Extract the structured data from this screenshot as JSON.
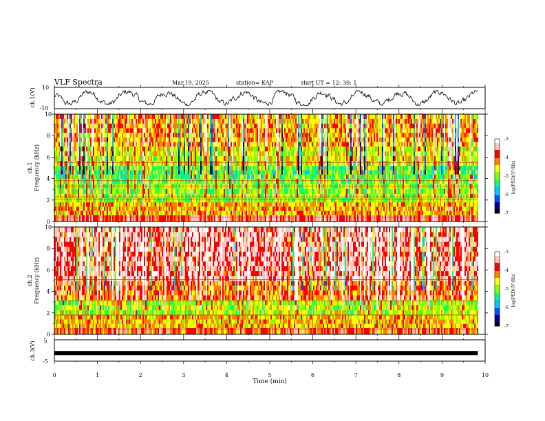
{
  "header": {
    "title": "VLF Spectra",
    "date": "Mar.19, 2025",
    "station": "station= KAP",
    "start_ut": "start  UT  =   12: 30: 1"
  },
  "x_axis": {
    "label": "Time  (min)",
    "ticks": [
      "0",
      "1",
      "2",
      "3",
      "4",
      "5",
      "6",
      "7",
      "8",
      "9",
      "10"
    ],
    "range": [
      0,
      10
    ],
    "data_end": 9.83
  },
  "panels": {
    "ch1_waveform": {
      "ylabel": "ch.1(V)",
      "ticks": [
        "10",
        "-10"
      ],
      "range": [
        -10,
        10
      ]
    },
    "ch1_spectrogram": {
      "ylabel_channel": "ch.1",
      "ylabel": "Frequency  (kHz)",
      "ticks": [
        "0",
        "2",
        "4",
        "6",
        "8",
        "10"
      ],
      "range": [
        0,
        10
      ],
      "colorbar": {
        "label": "log(PSD)(V²/Hz)",
        "ticks": [
          "-3",
          "-4",
          "-5",
          "-6",
          "-7"
        ],
        "range": [
          -7,
          -3
        ]
      }
    },
    "ch2_spectrogram": {
      "ylabel_channel": "ch.2",
      "ylabel": "Frequency  (kHz)",
      "ticks": [
        "0",
        "2",
        "4",
        "6",
        "8",
        "10"
      ],
      "range": [
        0,
        10
      ],
      "colorbar": {
        "label": "log(PSD)(V²/Hz)",
        "ticks": [
          "-3",
          "-4",
          "-5",
          "-6",
          "-7"
        ],
        "range": [
          -7,
          -3
        ]
      }
    },
    "ch3_waveform": {
      "ylabel": "ch.3(V)",
      "ticks": [
        "5",
        "-5"
      ],
      "range": [
        -5,
        5
      ],
      "level": -1.2
    }
  },
  "colors": {
    "colormap": [
      "#000000",
      "#0000a0",
      "#0050ff",
      "#00c8ff",
      "#00ff80",
      "#80ff00",
      "#ffff00",
      "#ff8000",
      "#ff0000",
      "#ffc0c0",
      "#ffffff"
    ]
  },
  "chart_data": [
    {
      "type": "line",
      "title": "VLF Spectra",
      "ylabel": "ch.1(V)",
      "xlabel": "Time  (min)",
      "xlim": [
        0,
        10
      ],
      "ylim": [
        -10,
        10
      ],
      "series": [
        {
          "x": [
            0,
            9.83
          ],
          "note_range": [
            -6,
            6
          ]
        }
      ]
    },
    {
      "type": "heatmap",
      "ylabel": "Frequency  (kHz)",
      "xlabel": "Time  (min)",
      "xlim": [
        0,
        10
      ],
      "ylim": [
        0,
        10
      ],
      "colorbar_label": "log(PSD)(V²/Hz)",
      "zlim": [
        -7,
        -3
      ],
      "bands_khz": [
        {
          "from": 0.0,
          "to": 0.6,
          "log_psd": -3.8
        },
        {
          "from": 0.6,
          "to": 1.8,
          "log_psd": -4.4
        },
        {
          "from": 1.8,
          "to": 2.6,
          "log_psd": -4.9
        },
        {
          "from": 2.6,
          "to": 4.0,
          "log_psd": -5.0
        },
        {
          "from": 4.0,
          "to": 5.2,
          "log_psd": -5.2
        },
        {
          "from": 5.2,
          "to": 7.0,
          "log_psd": -4.7
        },
        {
          "from": 7.0,
          "to": 10.0,
          "log_psd": -4.3
        }
      ],
      "lines_khz": [
        0.4,
        2.1,
        2.3,
        3.3,
        3.8,
        5.5
      ]
    },
    {
      "type": "heatmap",
      "ylabel": "Frequency  (kHz)",
      "xlabel": "Time  (min)",
      "xlim": [
        0,
        10
      ],
      "ylim": [
        0,
        10
      ],
      "colorbar_label": "log(PSD)(V²/Hz)",
      "zlim": [
        -7,
        -3
      ],
      "bands_khz": [
        {
          "from": 0.0,
          "to": 0.6,
          "log_psd": -4.2
        },
        {
          "from": 0.6,
          "to": 1.8,
          "log_psd": -4.6
        },
        {
          "from": 1.8,
          "to": 3.2,
          "log_psd": -5.0
        },
        {
          "from": 3.2,
          "to": 5.0,
          "log_psd": -4.2
        },
        {
          "from": 5.0,
          "to": 10.0,
          "log_psd": -3.7
        }
      ],
      "lines_khz": [
        0.5,
        1.8,
        3.1,
        5.1
      ]
    },
    {
      "type": "line",
      "ylabel": "ch.3(V)",
      "xlim": [
        0,
        10
      ],
      "ylim": [
        -5,
        5
      ],
      "series": [
        {
          "x": [
            0,
            9.83
          ],
          "y": [
            -1.2,
            -1.2
          ]
        }
      ]
    }
  ]
}
